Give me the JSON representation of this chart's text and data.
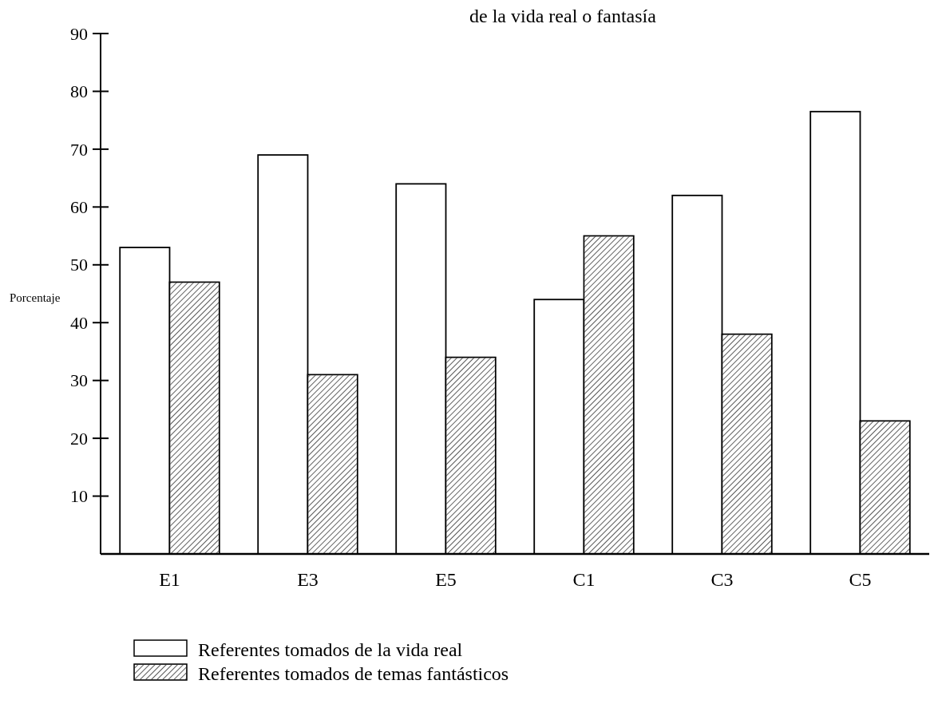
{
  "chart_data": {
    "type": "bar",
    "title": "de la vida real o fantasía",
    "ylabel": "Porcentaje",
    "categories": [
      "E1",
      "E3",
      "E5",
      "C1",
      "C3",
      "C5"
    ],
    "series": [
      {
        "name": "Referentes tomados de la vida real",
        "color": "#ffffff",
        "values": [
          53,
          69,
          64,
          44,
          62,
          76.5
        ]
      },
      {
        "name": "Referentes tomados de temas fantásticos",
        "color": "#b4b4b4",
        "values": [
          47,
          31,
          34,
          55,
          38,
          23
        ]
      }
    ],
    "ylim": [
      0,
      90
    ],
    "yticks": [
      10,
      20,
      30,
      40,
      50,
      60,
      70,
      80,
      90
    ],
    "grid": false,
    "legend": "bottom left"
  }
}
